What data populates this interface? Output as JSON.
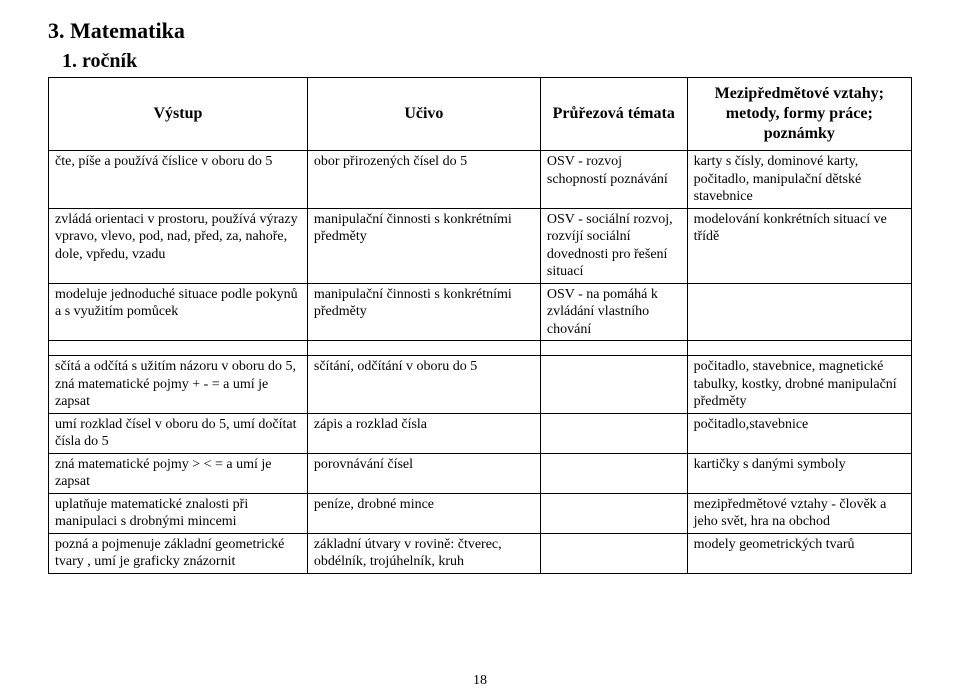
{
  "title": "3. Matematika",
  "subtitle": "1. ročník",
  "pageNumber": "18",
  "headers": {
    "c1": "Výstup",
    "c2": "Učivo",
    "c3": "Průřezová témata",
    "c4": "Mezipředmětové vztahy; metody, formy práce; poznámky"
  },
  "rows": [
    {
      "c1": "čte, píše a používá číslice v oboru do 5",
      "c2": "obor přirozených čísel do 5",
      "c3": "OSV - rozvoj schopností poznávání",
      "c4": "karty s čísly, dominové karty, počitadlo, manipulační dětské stavebnice"
    },
    {
      "c1": "zvládá orientaci v prostoru, používá výrazy vpravo, vlevo, pod, nad, před, za, nahoře, dole, vpředu, vzadu",
      "c2": "manipulační činnosti s konkrétními předměty",
      "c3": "OSV - sociální rozvoj, rozvíjí sociální dovednosti pro řešení situací",
      "c4": "modelování konkrétních situací ve třídě"
    },
    {
      "c1": "modeluje jednoduché situace podle pokynů a s využitím pomůcek",
      "c2": "manipulační činnosti s konkrétními předměty",
      "c3": "OSV - na pomáhá k zvládání vlastního chování",
      "c4": ""
    },
    {
      "c1": "sčítá a odčítá s užitím názoru v oboru do 5, zná matematické pojmy + - = a umí je zapsat",
      "c2": "sčítání, odčítání v oboru do 5",
      "c3": "",
      "c4": "počitadlo, stavebnice, magnetické tabulky, kostky, drobné manipulační předměty"
    },
    {
      "c1": "umí rozklad čísel v oboru do 5, umí dočítat čísla do 5",
      "c2": "zápis a rozklad čísla",
      "c3": "",
      "c4": "počitadlo,stavebnice"
    },
    {
      "c1": "zná matematické pojmy > < = a umí je zapsat",
      "c2": "porovnávání čísel",
      "c3": "",
      "c4": "kartičky s danými symboly"
    },
    {
      "c1": "uplatňuje matematické znalosti při manipulaci s drobnými mincemi",
      "c2": "peníze, drobné mince",
      "c3": "",
      "c4": "mezipředmětové vztahy - člověk a jeho svět, hra na obchod"
    },
    {
      "c1": "pozná a pojmenuje základní geometrické tvary , umí je graficky znázornit",
      "c2": "základní útvary v rovině: čtverec, obdélník, trojúhelník, kruh",
      "c3": "",
      "c4": "modely geometrických tvarů"
    }
  ]
}
